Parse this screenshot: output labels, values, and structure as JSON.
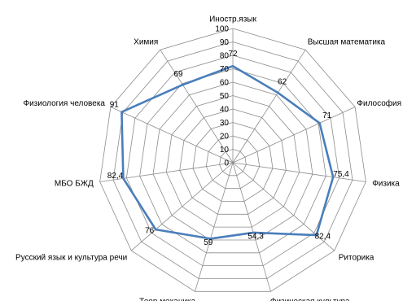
{
  "chart_data": {
    "type": "radar",
    "categories": [
      "Иностр.язык",
      "Высшая математика",
      "Философия",
      "Физика",
      "Риторика",
      "Физическая культура",
      "Теор.механика",
      "Русский язык и культура речи",
      "МБО БЖД",
      "Физиология человека",
      "Химия"
    ],
    "series": [
      {
        "values": [
          72,
          62,
          71,
          75.4,
          82.4,
          54.3,
          59,
          76,
          82.4,
          91,
          69
        ],
        "value_labels": [
          "72",
          "62",
          "71",
          "75,4",
          "82,4",
          "54,3",
          "59",
          "76",
          "82,4",
          "91",
          "69"
        ],
        "color": "#4a7ebb"
      }
    ],
    "r_ticks": [
      "0",
      "10",
      "20",
      "30",
      "40",
      "50",
      "60",
      "70",
      "80",
      "90",
      "100"
    ],
    "rlim": [
      0,
      100
    ],
    "grid": true,
    "legend": "none",
    "gridline_color": "#8c8c8c"
  }
}
